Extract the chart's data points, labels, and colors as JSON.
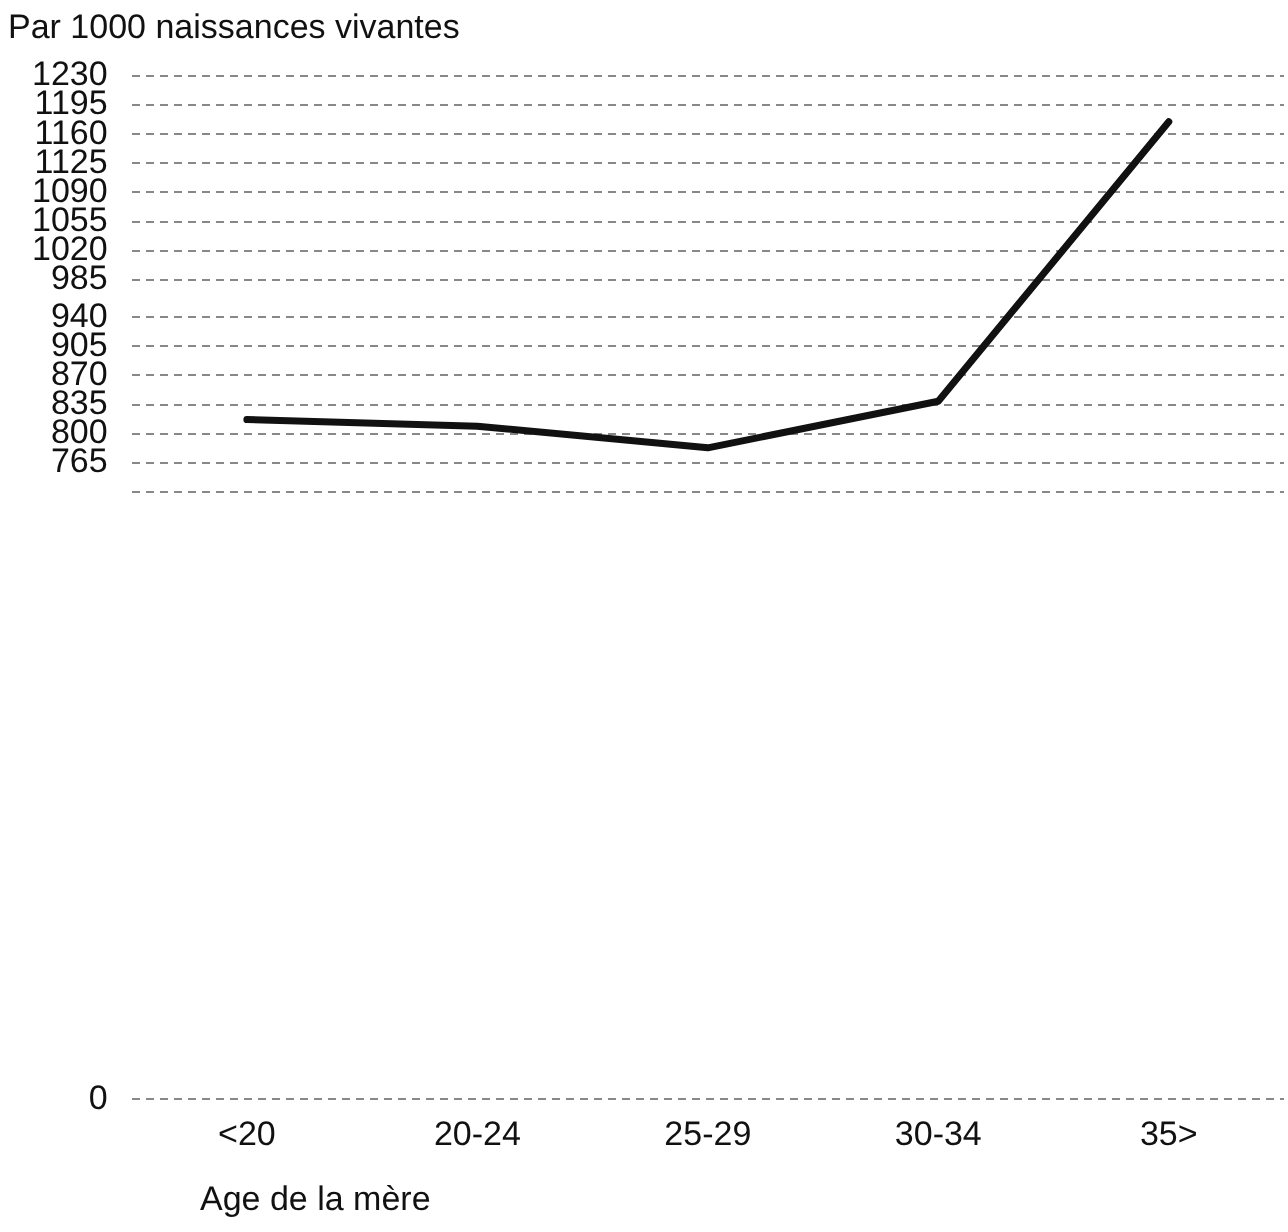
{
  "chart_data": {
    "type": "line",
    "ylabel": "Par 1000 naissances vivantes",
    "xlabel": "Age de la mère",
    "categories": [
      "<20",
      "20-24",
      "25-29",
      "30-34",
      "35>"
    ],
    "series": [
      {
        "color": "#111111",
        "values": [
          817,
          809,
          783,
          839,
          1175
        ]
      }
    ],
    "ylim": [
      0,
      1230
    ],
    "yticks": [
      0,
      {
        "value": 730,
        "label": null
      },
      765,
      800,
      835,
      870,
      905,
      940,
      985,
      1020,
      1055,
      1090,
      1125,
      1160,
      1195,
      1230
    ],
    "grid": "y",
    "legend": false,
    "marker": "none",
    "line_style": "solid"
  }
}
